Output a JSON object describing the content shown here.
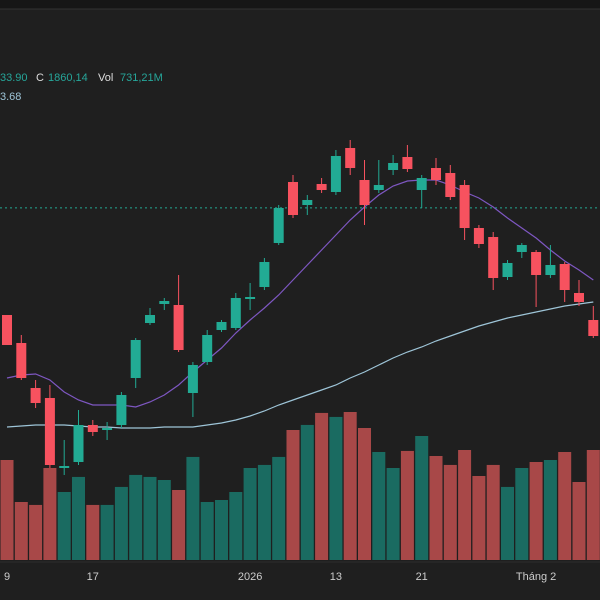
{
  "chart_data": {
    "type": "candlestick",
    "categories": [
      "9",
      null,
      null,
      null,
      null,
      null,
      "17",
      null,
      null,
      null,
      null,
      null,
      null,
      null,
      null,
      null,
      null,
      "2026",
      null,
      null,
      null,
      null,
      null,
      "13",
      null,
      null,
      null,
      null,
      null,
      "21",
      null,
      null,
      null,
      null,
      null,
      null,
      null,
      "Tháng 2",
      null,
      null,
      null,
      null
    ],
    "open": [
      1753,
      1725,
      1680,
      1670,
      1600,
      1606,
      1643,
      1638,
      1643,
      1690,
      1745,
      1764,
      1763,
      1675,
      1706,
      1738,
      1740,
      1769,
      1781,
      1825,
      1886,
      1863,
      1884,
      1876,
      1920,
      1888,
      1878,
      1898,
      1911,
      1878,
      1900,
      1895,
      1883,
      1840,
      1831,
      1791,
      1816,
      1816,
      1793,
      1804,
      1775,
      1748
    ],
    "high": [
      1753,
      1733,
      1688,
      1683,
      1628,
      1658,
      1648,
      1646,
      1676,
      1730,
      1760,
      1770,
      1793,
      1706,
      1738,
      1748,
      1775,
      1785,
      1810,
      1863,
      1893,
      1873,
      1890,
      1918,
      1928,
      1908,
      1908,
      1913,
      1923,
      1893,
      1910,
      1903,
      1888,
      1843,
      1836,
      1808,
      1825,
      1818,
      1823,
      1806,
      1788,
      1762
    ],
    "low": [
      1723,
      1688,
      1660,
      1600,
      1593,
      1603,
      1632,
      1628,
      1640,
      1680,
      1743,
      1758,
      1716,
      1651,
      1703,
      1736,
      1738,
      1758,
      1778,
      1823,
      1850,
      1853,
      1875,
      1873,
      1893,
      1843,
      1875,
      1893,
      1896,
      1860,
      1883,
      1868,
      1828,
      1820,
      1778,
      1788,
      1810,
      1761,
      1790,
      1766,
      1762,
      1730
    ],
    "close": [
      1723,
      1690,
      1665,
      1603,
      1602,
      1643,
      1636,
      1640,
      1673,
      1728,
      1753,
      1767,
      1718,
      1703,
      1733,
      1746,
      1770,
      1771,
      1806,
      1860,
      1853,
      1868,
      1878,
      1912,
      1900,
      1863,
      1883,
      1905,
      1899,
      1890,
      1888,
      1871,
      1840,
      1824,
      1790,
      1805,
      1823,
      1793,
      1803,
      1778,
      1766,
      1732
    ],
    "volume": [
      750,
      435,
      413,
      690,
      510,
      623,
      413,
      413,
      548,
      638,
      623,
      600,
      525,
      773,
      435,
      450,
      510,
      690,
      713,
      773,
      975,
      1013,
      1103,
      1073,
      1110,
      990,
      810,
      690,
      818,
      930,
      780,
      713,
      825,
      630,
      713,
      548,
      690,
      735,
      750,
      810,
      585,
      825
    ],
    "up_color": "#22ab94",
    "down_color": "#f7525f",
    "volume_up_color": "#1a6b61",
    "volume_down_color": "#a84848",
    "lines": [
      {
        "color": "#7e57c2",
        "values": [
          1690,
          1693,
          1694,
          1688,
          1676,
          1668,
          1663,
          1663,
          1663,
          1661,
          1666,
          1673,
          1683,
          1696,
          1708,
          1720,
          1735,
          1748,
          1760,
          1773,
          1788,
          1803,
          1818,
          1833,
          1848,
          1861,
          1873,
          1882,
          1887,
          1888,
          1888,
          1883,
          1876,
          1870,
          1861,
          1850,
          1840,
          1830,
          1818,
          1807,
          1798,
          1788
        ]
      },
      {
        "color": "#9ec5d8",
        "values": [
          1641,
          1642,
          1643,
          1643,
          1643,
          1642,
          1641,
          1641,
          1640,
          1640,
          1640,
          1641,
          1641,
          1641,
          1643,
          1645,
          1648,
          1652,
          1657,
          1663,
          1668,
          1673,
          1678,
          1683,
          1690,
          1696,
          1703,
          1710,
          1716,
          1721,
          1727,
          1732,
          1737,
          1742,
          1746,
          1750,
          1753,
          1756,
          1759,
          1762,
          1764,
          1766
        ]
      }
    ],
    "price_line": 1860.14,
    "ylim": [
      1468,
      2068
    ],
    "volume_ylim": [
      0,
      4200
    ],
    "header": {
      "partial_value": "33.90",
      "close_label": "C",
      "close": "1860,14",
      "volume_label": "Vol",
      "volume": "731,21M",
      "ma_value": "3.68"
    }
  }
}
